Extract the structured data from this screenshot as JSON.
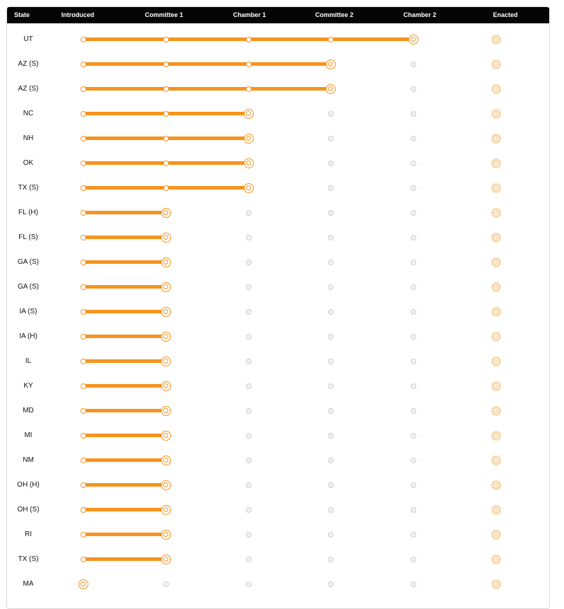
{
  "header": {
    "state": "State",
    "stages": [
      "Introduced",
      "Committee 1",
      "Chamber 1",
      "Committee 2",
      "Chamber 2",
      "Enacted"
    ]
  },
  "colors": {
    "progress": "#f7931e",
    "pending": "#cfcfcf",
    "enacted": "#f8dcb4",
    "header_bg": "#050505"
  },
  "rows": [
    {
      "state": "UT",
      "stage_reached": 4
    },
    {
      "state": "AZ  (S)",
      "stage_reached": 3
    },
    {
      "state": "AZ  (S)",
      "stage_reached": 3
    },
    {
      "state": "NC",
      "stage_reached": 2
    },
    {
      "state": "NH",
      "stage_reached": 2
    },
    {
      "state": "OK",
      "stage_reached": 2
    },
    {
      "state": "TX  (S)",
      "stage_reached": 2
    },
    {
      "state": "FL  (H)",
      "stage_reached": 1
    },
    {
      "state": "FL  (S)",
      "stage_reached": 1
    },
    {
      "state": "GA  (S)",
      "stage_reached": 1
    },
    {
      "state": "GA  (S)",
      "stage_reached": 1
    },
    {
      "state": "IA  (S)",
      "stage_reached": 1
    },
    {
      "state": "IA  (H)",
      "stage_reached": 1
    },
    {
      "state": "IL",
      "stage_reached": 1
    },
    {
      "state": "KY",
      "stage_reached": 1
    },
    {
      "state": "MD",
      "stage_reached": 1
    },
    {
      "state": "MI",
      "stage_reached": 1
    },
    {
      "state": "NM",
      "stage_reached": 1
    },
    {
      "state": "OH  (H)",
      "stage_reached": 1
    },
    {
      "state": "OH  (S)",
      "stage_reached": 1
    },
    {
      "state": "RI",
      "stage_reached": 1
    },
    {
      "state": "TX  (S)",
      "stage_reached": 1
    },
    {
      "state": "MA",
      "stage_reached": 0
    }
  ]
}
